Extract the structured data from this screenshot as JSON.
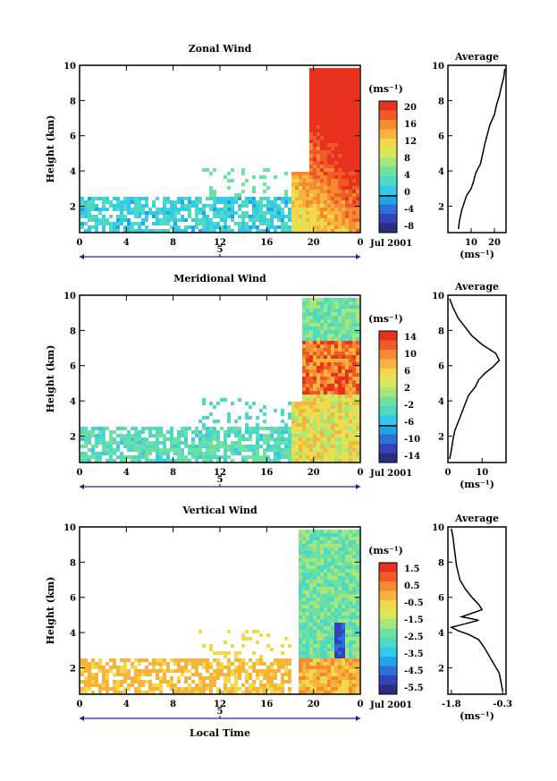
{
  "colors": {
    "scale": [
      "#2a2e7e",
      "#3344b8",
      "#2c6fd8",
      "#1fa6e6",
      "#33c9e8",
      "#4fd9c4",
      "#6fe0a0",
      "#a6e67a",
      "#d8e85a",
      "#f2d84a",
      "#f7b43c",
      "#f58a32",
      "#f05a28",
      "#e8321e"
    ]
  },
  "date_label": "Jul 2001",
  "xlabel_bottom": "Local Time",
  "chart_data": [
    {
      "type": "heatmap",
      "title": "Zonal Wind",
      "ylabel": "Height (km)",
      "ylim": [
        0.5,
        10
      ],
      "yticks": [
        "2",
        "4",
        "6",
        "8",
        "10"
      ],
      "xlim": [
        0,
        24
      ],
      "xticks": [
        "0",
        "4",
        "8",
        "12",
        "16",
        "20",
        "0"
      ],
      "day_marker": "5",
      "colorbar": {
        "unit": "(ms⁻¹)",
        "ticks": [
          "20",
          "16",
          "12",
          "8",
          "4",
          "0",
          "-4",
          "-8"
        ]
      },
      "average_panel": {
        "title": "Average",
        "xticks": [
          "10",
          "20"
        ],
        "xlim": [
          0,
          25
        ],
        "xlabel": "(ms⁻¹)",
        "profile": [
          [
            4.5,
            0.7
          ],
          [
            5,
            1.2
          ],
          [
            6,
            1.8
          ],
          [
            7,
            2.2
          ],
          [
            8,
            2.6
          ],
          [
            10,
            3.0
          ],
          [
            11,
            3.4
          ],
          [
            12,
            3.9
          ],
          [
            14,
            4.4
          ],
          [
            15,
            5.0
          ],
          [
            16,
            5.6
          ],
          [
            17,
            6.1
          ],
          [
            18,
            6.6
          ],
          [
            20,
            7.2
          ],
          [
            21,
            7.8
          ],
          [
            22,
            8.2
          ],
          [
            23,
            8.8
          ],
          [
            24,
            9.3
          ],
          [
            24.5,
            9.8
          ]
        ]
      }
    },
    {
      "type": "heatmap",
      "title": "Meridional Wind",
      "ylabel": "Height (km)",
      "ylim": [
        0.5,
        10
      ],
      "yticks": [
        "2",
        "4",
        "6",
        "8",
        "10"
      ],
      "xlim": [
        0,
        24
      ],
      "xticks": [
        "0",
        "4",
        "8",
        "12",
        "16",
        "20",
        "0"
      ],
      "day_marker": "5",
      "colorbar": {
        "unit": "(ms⁻¹)",
        "ticks": [
          "14",
          "10",
          "6",
          "2",
          "-2",
          "-6",
          "-10",
          "-14"
        ]
      },
      "average_panel": {
        "title": "Average",
        "xticks": [
          "0",
          "10"
        ],
        "xlim": [
          0,
          17
        ],
        "xlabel": "(ms⁻¹)",
        "profile": [
          [
            0.5,
            0.7
          ],
          [
            1,
            1.2
          ],
          [
            1.5,
            1.8
          ],
          [
            2,
            2.3
          ],
          [
            3,
            2.8
          ],
          [
            4,
            3.3
          ],
          [
            5,
            3.8
          ],
          [
            6,
            4.3
          ],
          [
            8,
            4.8
          ],
          [
            9,
            5.2
          ],
          [
            11,
            5.6
          ],
          [
            13,
            5.9
          ],
          [
            15,
            6.3
          ],
          [
            14,
            6.7
          ],
          [
            10,
            7.2
          ],
          [
            7,
            7.7
          ],
          [
            5,
            8.2
          ],
          [
            3,
            8.7
          ],
          [
            1.5,
            9.3
          ],
          [
            0.5,
            9.8
          ]
        ]
      }
    },
    {
      "type": "heatmap",
      "title": "Vertical Wind",
      "ylabel": "Height (km)",
      "ylim": [
        0.5,
        10
      ],
      "yticks": [
        "2",
        "4",
        "6",
        "8",
        "10"
      ],
      "xlim": [
        0,
        24
      ],
      "xticks": [
        "0",
        "4",
        "8",
        "12",
        "16",
        "20",
        "0"
      ],
      "day_marker": "5",
      "colorbar": {
        "unit": "(ms⁻¹)",
        "ticks": [
          "1.5",
          "0.5",
          "-0.5",
          "-1.5",
          "-2.5",
          "-3.5",
          "-4.5",
          "-5.5"
        ]
      },
      "average_panel": {
        "title": "Average",
        "xticks": [
          "-1.8",
          "-0.3"
        ],
        "xlim": [
          -1.9,
          -0.2
        ],
        "xlabel": "(ms⁻¹)",
        "profile": [
          [
            -0.3,
            0.7
          ],
          [
            -0.35,
            1.2
          ],
          [
            -0.4,
            1.7
          ],
          [
            -0.55,
            2.2
          ],
          [
            -0.7,
            2.7
          ],
          [
            -0.85,
            3.2
          ],
          [
            -1.0,
            3.6
          ],
          [
            -1.3,
            3.9
          ],
          [
            -1.6,
            4.1
          ],
          [
            -1.8,
            4.3
          ],
          [
            -1.4,
            4.5
          ],
          [
            -1.0,
            4.7
          ],
          [
            -1.5,
            4.9
          ],
          [
            -1.2,
            5.1
          ],
          [
            -0.9,
            5.3
          ],
          [
            -1.0,
            5.6
          ],
          [
            -1.2,
            6.0
          ],
          [
            -1.4,
            6.5
          ],
          [
            -1.55,
            7.0
          ],
          [
            -1.65,
            7.8
          ],
          [
            -1.7,
            8.6
          ],
          [
            -1.75,
            9.4
          ],
          [
            -1.8,
            9.9
          ]
        ]
      }
    }
  ]
}
